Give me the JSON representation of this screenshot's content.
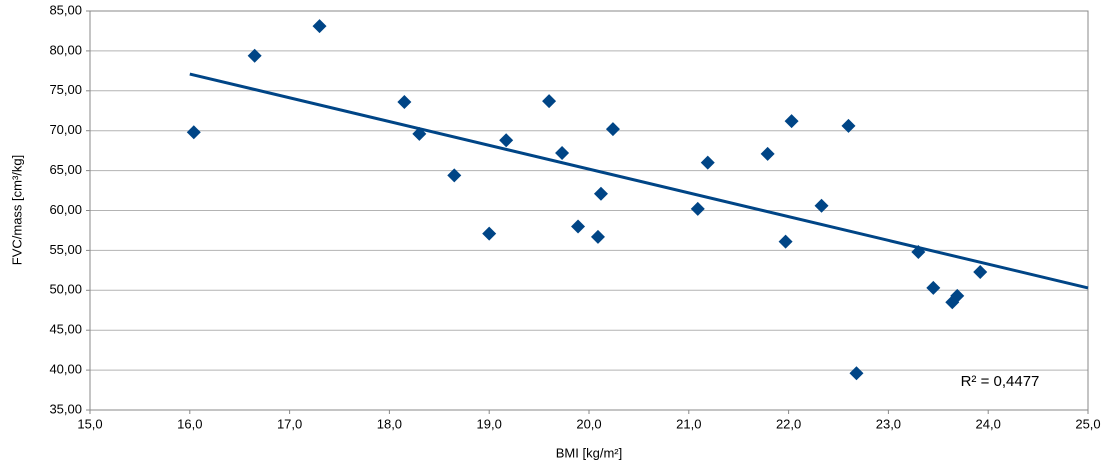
{
  "chart_data": {
    "type": "scatter",
    "x_label": "BMI [kg/m²]",
    "y_label": "FVC/mass [cm³/kg]",
    "annotation": "R² = 0,4477",
    "color": "#004586",
    "x": [
      16.04,
      16.65,
      17.3,
      18.15,
      18.3,
      18.65,
      19.0,
      19.17,
      19.6,
      19.73,
      19.89,
      20.09,
      20.12,
      20.24,
      21.09,
      21.19,
      21.79,
      21.97,
      22.03,
      22.33,
      22.6,
      22.68,
      23.3,
      23.45,
      23.64,
      23.69,
      23.92
    ],
    "values": [
      69.8,
      79.4,
      83.1,
      73.6,
      69.6,
      64.4,
      57.1,
      68.8,
      73.7,
      67.2,
      58.0,
      56.7,
      62.1,
      70.2,
      60.2,
      66.0,
      67.1,
      56.1,
      71.2,
      60.6,
      70.6,
      39.6,
      54.8,
      50.3,
      48.5,
      49.3,
      52.3
    ],
    "trendline": {
      "x": [
        16.0,
        25.0
      ],
      "values": [
        77.1,
        50.3
      ],
      "color": "#004586"
    },
    "xlim": [
      15,
      25
    ],
    "ylim": [
      35,
      85
    ],
    "xticks": [
      {
        "value": 15,
        "label": "15,0"
      },
      {
        "value": 16,
        "label": "16,0"
      },
      {
        "value": 17,
        "label": "17,0"
      },
      {
        "value": 18,
        "label": "18,0"
      },
      {
        "value": 19,
        "label": "19,0"
      },
      {
        "value": 20,
        "label": "20,0"
      },
      {
        "value": 21,
        "label": "21,0"
      },
      {
        "value": 22,
        "label": "22,0"
      },
      {
        "value": 23,
        "label": "23,0"
      },
      {
        "value": 24,
        "label": "24,0"
      },
      {
        "value": 25,
        "label": "25,0"
      }
    ],
    "yticks": [
      {
        "value": 35,
        "label": "35,00"
      },
      {
        "value": 40,
        "label": "40,00"
      },
      {
        "value": 45,
        "label": "45,00"
      },
      {
        "value": 50,
        "label": "50,00"
      },
      {
        "value": 55,
        "label": "55,00"
      },
      {
        "value": 60,
        "label": "60,00"
      },
      {
        "value": 65,
        "label": "65,00"
      },
      {
        "value": 70,
        "label": "70,00"
      },
      {
        "value": 75,
        "label": "75,00"
      },
      {
        "value": 80,
        "label": "80,00"
      },
      {
        "value": 85,
        "label": "85,00"
      }
    ],
    "grid": true
  }
}
